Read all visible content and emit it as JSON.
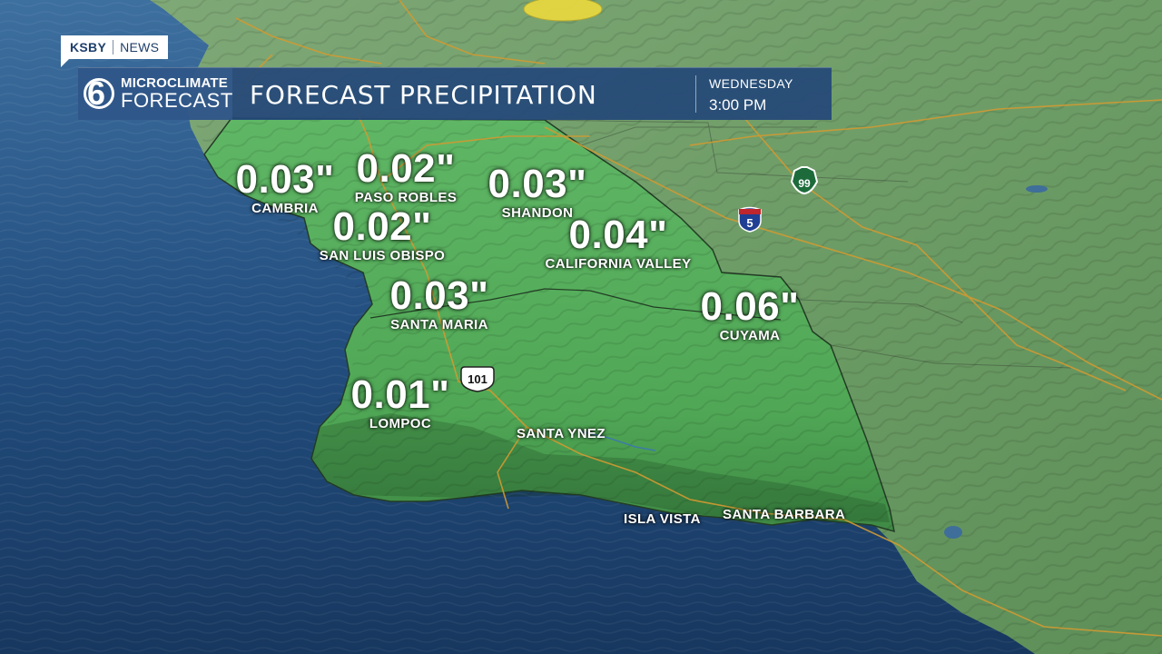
{
  "brand": {
    "station": "KSBY",
    "division": "NEWS"
  },
  "logo": {
    "channel_number": "6",
    "line1": "MICROCLIMATE",
    "line2": "FORECAST"
  },
  "header": {
    "title": "FORECAST PRECIPITATION",
    "day": "WEDNESDAY",
    "time": "3:00 PM"
  },
  "units": "inches",
  "colors": {
    "land_forecast_area": "#4fa956",
    "land_outside": "#6a9a63",
    "ocean": "#1f4f80",
    "banner": "#244878",
    "highway_lines": "#d19a32",
    "rain_blob": "#e6d740"
  },
  "forecasts": [
    {
      "name": "CAMBRIA",
      "value": "0.03\""
    },
    {
      "name": "PASO ROBLES",
      "value": "0.02\""
    },
    {
      "name": "SHANDON",
      "value": "0.03\""
    },
    {
      "name": "SAN LUIS OBISPO",
      "value": "0.02\""
    },
    {
      "name": "CALIFORNIA VALLEY",
      "value": "0.04\""
    },
    {
      "name": "SANTA MARIA",
      "value": "0.03\""
    },
    {
      "name": "CUYAMA",
      "value": "0.06\""
    },
    {
      "name": "LOMPOC",
      "value": "0.01\""
    }
  ],
  "towns": [
    "SANTA YNEZ",
    "ISLA VISTA",
    "SANTA BARBARA"
  ],
  "highway_shields": [
    {
      "label": "101",
      "type": "us-route"
    },
    {
      "label": "5",
      "type": "interstate"
    },
    {
      "label": "99",
      "type": "state-route"
    }
  ]
}
